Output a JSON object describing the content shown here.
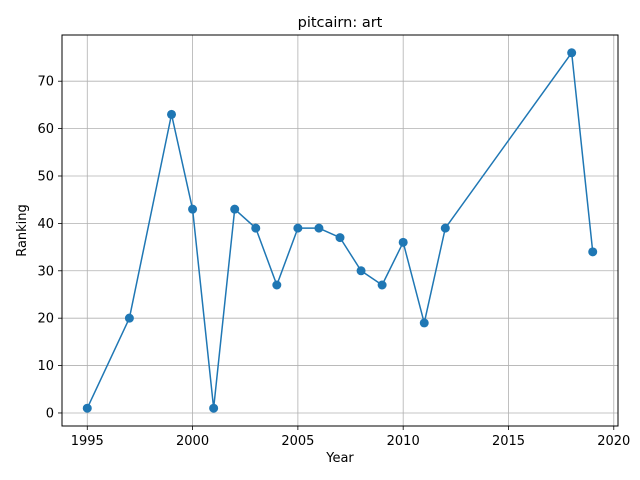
{
  "chart_data": {
    "type": "line",
    "title": "pitcairn: art",
    "xlabel": "Year",
    "ylabel": "Ranking",
    "xlim": [
      1993.8,
      2020.2
    ],
    "ylim": [
      -2.75,
      79.75
    ],
    "xticks": [
      1995,
      2000,
      2005,
      2010,
      2015,
      2020
    ],
    "yticks": [
      0,
      10,
      20,
      30,
      40,
      50,
      60,
      70
    ],
    "grid": true,
    "color": "#1f77b4",
    "marker": "circle",
    "series": [
      {
        "x": [
          1995,
          1997,
          1999,
          2000,
          2001,
          2002,
          2003,
          2004,
          2005,
          2006,
          2007,
          2008,
          2009,
          2010,
          2011,
          2012,
          2018,
          2019
        ],
        "y": [
          1,
          20,
          63,
          43,
          1,
          43,
          39,
          27,
          39,
          39,
          37,
          30,
          27,
          36,
          19,
          39,
          76,
          34
        ]
      }
    ]
  }
}
